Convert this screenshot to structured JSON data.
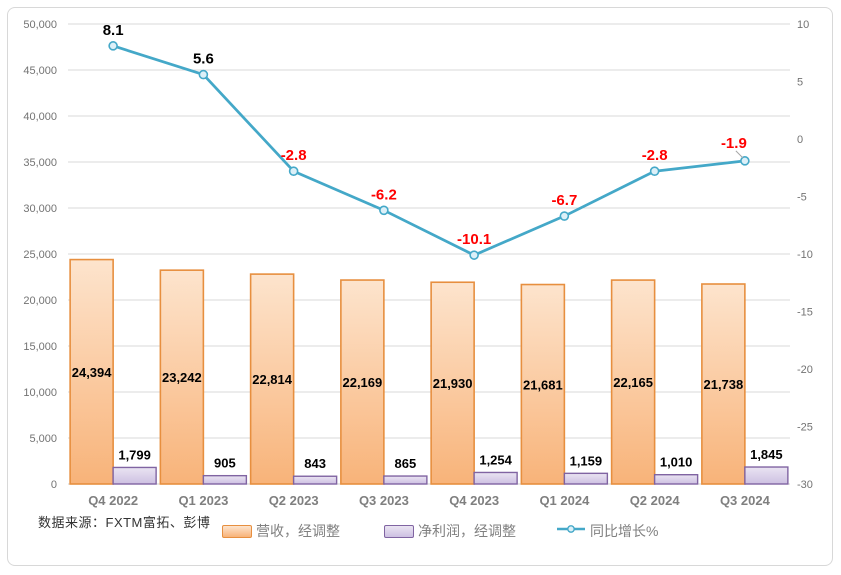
{
  "source_note": "数据来源：FXTM富拓、彭博",
  "legend": {
    "revenue": "营收，经调整",
    "profit": "净利润，经调整",
    "growth": "同比增长%"
  },
  "colors": {
    "revenue_fill_top": "#FDE4CD",
    "revenue_fill_bottom": "#F8B379",
    "revenue_border": "#E78F3F",
    "profit_fill_top": "#EAE4F2",
    "profit_fill_bottom": "#CDC0E2",
    "profit_border": "#8064A2",
    "line": "#44A8C8",
    "marker_fill": "#DCF0F8",
    "label_positive": "#000000",
    "label_negative": "#FF0000",
    "grid": "#D9D9D9",
    "axis_line": "#CFCFCF",
    "axis_text": "#737373",
    "category_text": "#7F7F7F",
    "leader": "#A6A6A6"
  },
  "chart_data": {
    "type": "combo-bar-line",
    "title": "",
    "categories": [
      "Q4 2022",
      "Q1 2023",
      "Q2 2023",
      "Q3 2023",
      "Q4 2023",
      "Q1 2024",
      "Q2 2024",
      "Q3 2024"
    ],
    "series": [
      {
        "name": "营收，经调整",
        "type": "bar",
        "axis": "left",
        "values": [
          24394,
          23242,
          22814,
          22169,
          21930,
          21681,
          22165,
          21738
        ],
        "labels": [
          "24,394",
          "23,242",
          "22,814",
          "22,169",
          "21,930",
          "21,681",
          "22,165",
          "21,738"
        ]
      },
      {
        "name": "净利润，经调整",
        "type": "bar",
        "axis": "left",
        "values": [
          1799,
          905,
          843,
          865,
          1254,
          1159,
          1010,
          1845
        ],
        "labels": [
          "1,799",
          "905",
          "843",
          "865",
          "1,254",
          "1,159",
          "1,010",
          "1,845"
        ]
      },
      {
        "name": "同比增长%",
        "type": "line",
        "axis": "right",
        "values": [
          8.1,
          5.6,
          -2.8,
          -6.2,
          -10.1,
          -6.7,
          -2.8,
          -1.9
        ],
        "labels": [
          "8.1",
          "5.6",
          "-2.8",
          "-6.2",
          "-10.1",
          "-6.7",
          "-2.8",
          "-1.9"
        ]
      }
    ],
    "left_axis": {
      "min": 0,
      "max": 50000,
      "step": 5000,
      "ticks": [
        "50,000",
        "45,000",
        "40,000",
        "35,000",
        "30,000",
        "25,000",
        "20,000",
        "15,000",
        "10,000",
        "5,000",
        "0"
      ]
    },
    "right_axis": {
      "min": -30,
      "max": 10,
      "step": 5,
      "ticks": [
        "10",
        "5",
        "0",
        "-5",
        "-10",
        "-15",
        "-20",
        "-25",
        "-30"
      ]
    },
    "grid": "horizontal",
    "legend_position": "bottom"
  }
}
